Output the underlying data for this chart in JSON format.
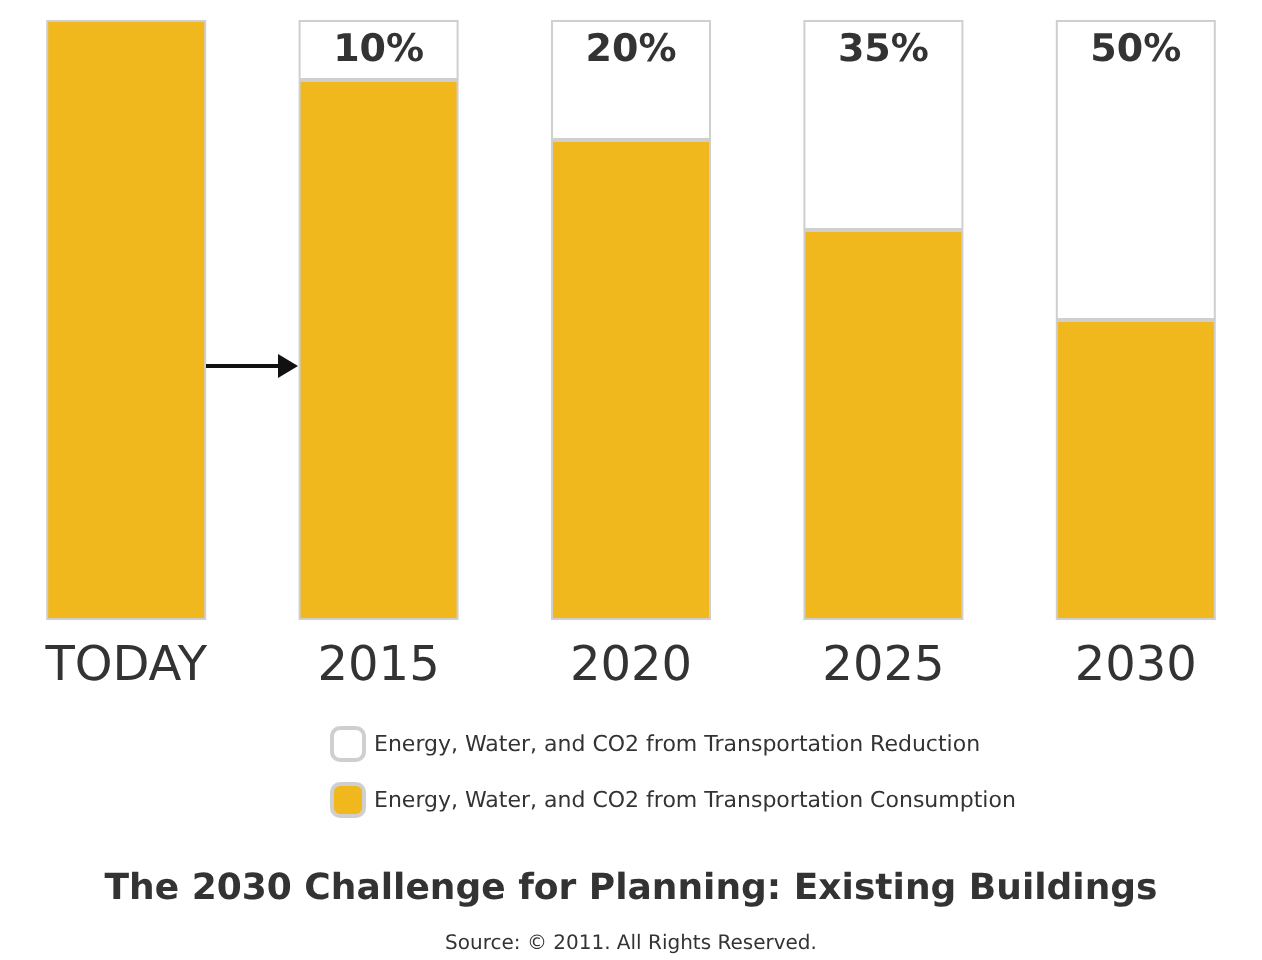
{
  "chart_data": {
    "type": "bar",
    "stacked": true,
    "title": "The 2030 Challenge for Planning: Existing Buildings",
    "annotations": [
      "Source: © 2011. All Rights Reserved."
    ],
    "categories": [
      "TODAY",
      "2015",
      "2020",
      "2025",
      "2030"
    ],
    "series": [
      {
        "name": "Energy, Water, and CO2 from Transportation Consumption",
        "color": "#f0b81c",
        "values": [
          100,
          90,
          80,
          65,
          50
        ]
      },
      {
        "name": "Energy, Water, and CO2 from Transportation Reduction",
        "color": "#ffffff",
        "values": [
          null,
          10,
          20,
          35,
          50
        ],
        "value_labels": [
          null,
          "10%",
          "20%",
          "35%",
          "50%"
        ]
      }
    ],
    "legend": "bottom"
  }
}
